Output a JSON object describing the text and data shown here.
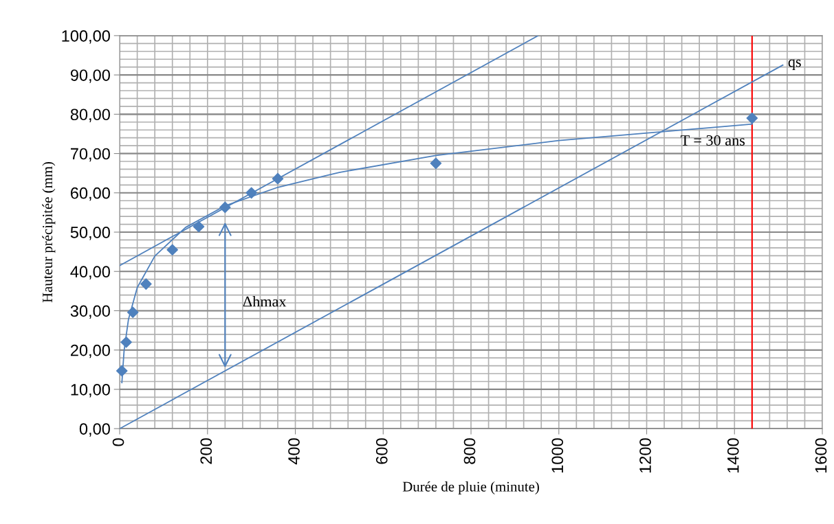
{
  "chart_data": {
    "type": "scatter",
    "xlabel": "Durée de pluie (minute)",
    "ylabel": "Hauteur précipitée (mm)",
    "xlim": [
      0,
      1600
    ],
    "ylim": [
      0,
      100
    ],
    "xticks": [
      0,
      200,
      400,
      600,
      800,
      1000,
      1200,
      1400,
      1600
    ],
    "yticks": [
      {
        "value": 0,
        "label": "0,00"
      },
      {
        "value": 10,
        "label": "10,00"
      },
      {
        "value": 20,
        "label": "20,00"
      },
      {
        "value": 30,
        "label": "30,00"
      },
      {
        "value": 40,
        "label": "40,00"
      },
      {
        "value": 50,
        "label": "50,00"
      },
      {
        "value": 60,
        "label": "60,00"
      },
      {
        "value": 70,
        "label": "70,00"
      },
      {
        "value": 80,
        "label": "80,00"
      },
      {
        "value": 90,
        "label": "90,00"
      },
      {
        "value": 100,
        "label": "100,00"
      }
    ],
    "grid": true,
    "marker": "diamond",
    "series": [
      {
        "color": "#4f81bd",
        "x": [
          5,
          15,
          30,
          60,
          120,
          180,
          240,
          300,
          360,
          720,
          1440
        ],
        "values": [
          14.7,
          22,
          29.6,
          36.8,
          45.5,
          51.4,
          56.3,
          60,
          63.6,
          67.5,
          79
        ]
      },
      {
        "type": "line",
        "color": "#4f81bd",
        "marker": "none",
        "x": [
          5,
          10,
          20,
          40,
          80,
          150,
          240,
          360,
          500,
          720,
          1000,
          1440
        ],
        "values": [
          11.7,
          19.8,
          27.8,
          35.9,
          43.9,
          51.2,
          56.7,
          61.4,
          65.2,
          69.5,
          73.3,
          77.5
        ]
      },
      {
        "type": "line",
        "color": "#4f81bd",
        "marker": "none",
        "x": [
          0,
          953
        ],
        "values": [
          41.5,
          100
        ]
      },
      {
        "type": "line",
        "color": "#4f81bd",
        "marker": "none",
        "x": [
          0,
          1510
        ],
        "values": [
          0,
          92.5
        ]
      }
    ],
    "ref_lines": [
      {
        "axis": "x",
        "value": 1440,
        "color": "#ff0000"
      }
    ],
    "annotations": [
      "Δhmax",
      {
        "text": "T = 30 ans",
        "x": 1440,
        "y": 73
      },
      {
        "text": "qs",
        "x": 1515,
        "y": 93
      }
    ]
  }
}
